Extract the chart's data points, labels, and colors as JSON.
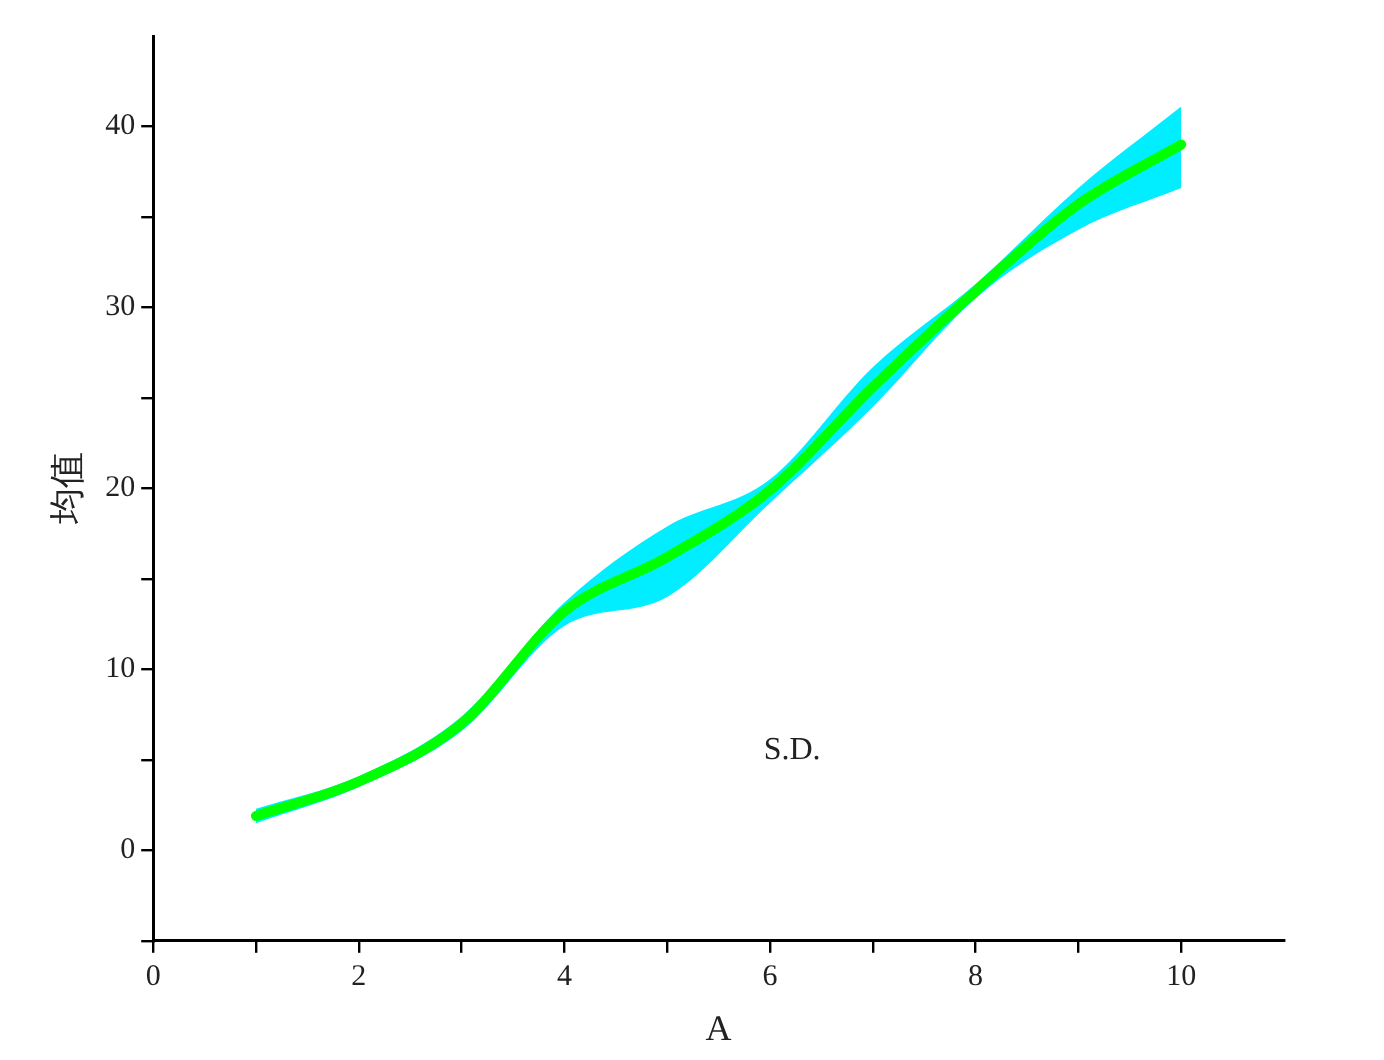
{
  "chart_data": {
    "type": "line",
    "xlabel": "A",
    "ylabel": "均值",
    "x": [
      1,
      2,
      3,
      4,
      5,
      6,
      7,
      8,
      9,
      10
    ],
    "series": [
      {
        "color": "#00ff00",
        "values": [
          1.9,
          3.8,
          7.0,
          13.2,
          16.2,
          19.9,
          25.6,
          30.9,
          35.7,
          39.0
        ],
        "lower": [
          1.5,
          3.5,
          6.6,
          12.4,
          14.0,
          19.2,
          24.5,
          30.5,
          34.3,
          36.6
        ],
        "upper": [
          2.3,
          4.1,
          7.4,
          13.7,
          17.9,
          20.5,
          26.7,
          31.3,
          36.6,
          41.1
        ]
      }
    ],
    "xlim": [
      0,
      11
    ],
    "xticks": [
      0,
      {
        "value": 1,
        "label": null
      },
      2,
      {
        "value": 3,
        "label": null
      },
      4,
      {
        "value": 5,
        "label": null
      },
      6,
      {
        "value": 7,
        "label": null
      },
      8,
      {
        "value": 9,
        "label": null
      },
      10
    ],
    "ylim": [
      -5,
      45
    ],
    "yticks": [
      {
        "value": -5,
        "label": null
      },
      0,
      {
        "value": 5,
        "label": null
      },
      10,
      {
        "value": 15,
        "label": null
      },
      20,
      {
        "value": 25,
        "label": null
      },
      30,
      {
        "value": 35,
        "label": null
      },
      40
    ],
    "grid": false,
    "legend": false,
    "marker": "none",
    "line_style": "solid",
    "annotations": [
      "S.D."
    ]
  }
}
